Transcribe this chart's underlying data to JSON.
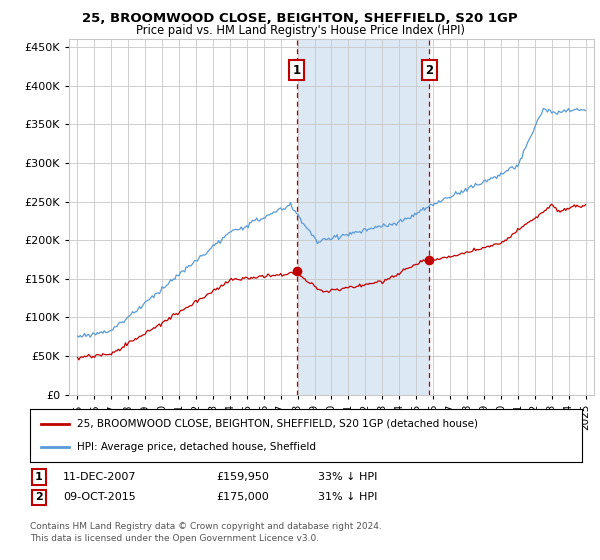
{
  "title": "25, BROOMWOOD CLOSE, BEIGHTON, SHEFFIELD, S20 1GP",
  "subtitle": "Price paid vs. HM Land Registry's House Price Index (HPI)",
  "legend_line1": "25, BROOMWOOD CLOSE, BEIGHTON, SHEFFIELD, S20 1GP (detached house)",
  "legend_line2": "HPI: Average price, detached house, Sheffield",
  "annotation1": {
    "label": "1",
    "date": "11-DEC-2007",
    "price": "£159,950",
    "hpi": "33% ↓ HPI",
    "x_year": 2007.94
  },
  "annotation2": {
    "label": "2",
    "date": "09-OCT-2015",
    "price": "£175,000",
    "hpi": "31% ↓ HPI",
    "x_year": 2015.77
  },
  "footnote": "Contains HM Land Registry data © Crown copyright and database right 2024.\nThis data is licensed under the Open Government Licence v3.0.",
  "hpi_color": "#5b9bd5",
  "price_color": "#c00000",
  "vline_color": "#c00000",
  "shade_color": "#dce9f5",
  "ylim": [
    0,
    460000
  ],
  "yticks": [
    0,
    50000,
    100000,
    150000,
    200000,
    250000,
    300000,
    350000,
    400000,
    450000
  ],
  "xlim_start": 1994.5,
  "xlim_end": 2025.5,
  "background_color": "#ffffff",
  "grid_color": "#c8c8c8"
}
